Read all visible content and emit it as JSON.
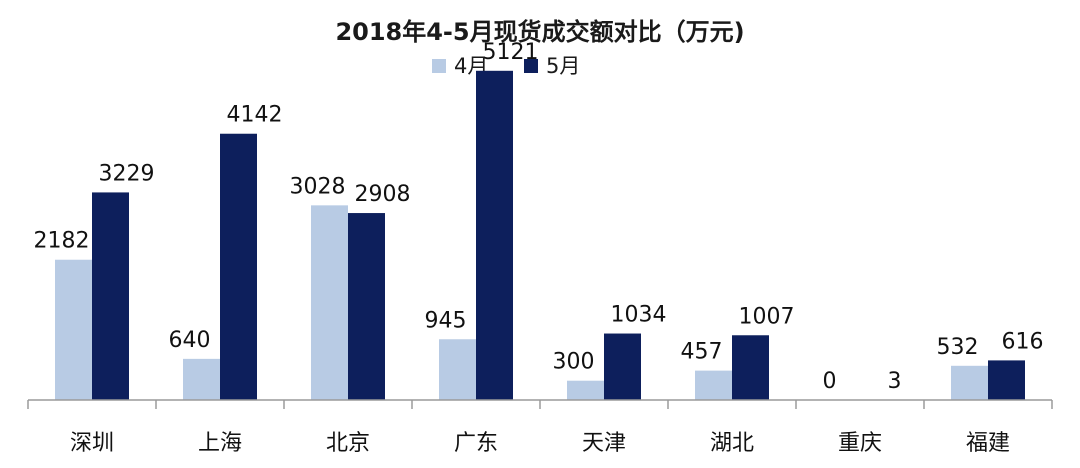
{
  "chart_data": {
    "type": "bar",
    "title": "2018年4-5月现货成交额对比（万元)",
    "categories": [
      "深圳",
      "上海",
      "北京",
      "广东",
      "天津",
      "湖北",
      "重庆",
      "福建"
    ],
    "series": [
      {
        "name": "4月",
        "values": [
          2182,
          640,
          3028,
          945,
          300,
          457,
          0,
          532
        ],
        "color": "#b8cbe4"
      },
      {
        "name": "5月",
        "values": [
          3229,
          4142,
          2908,
          5121,
          1034,
          1007,
          3,
          616
        ],
        "color": "#0d1f5c"
      }
    ],
    "ylim": [
      0,
      5600
    ],
    "grid": false,
    "legend_position": "top-center"
  }
}
